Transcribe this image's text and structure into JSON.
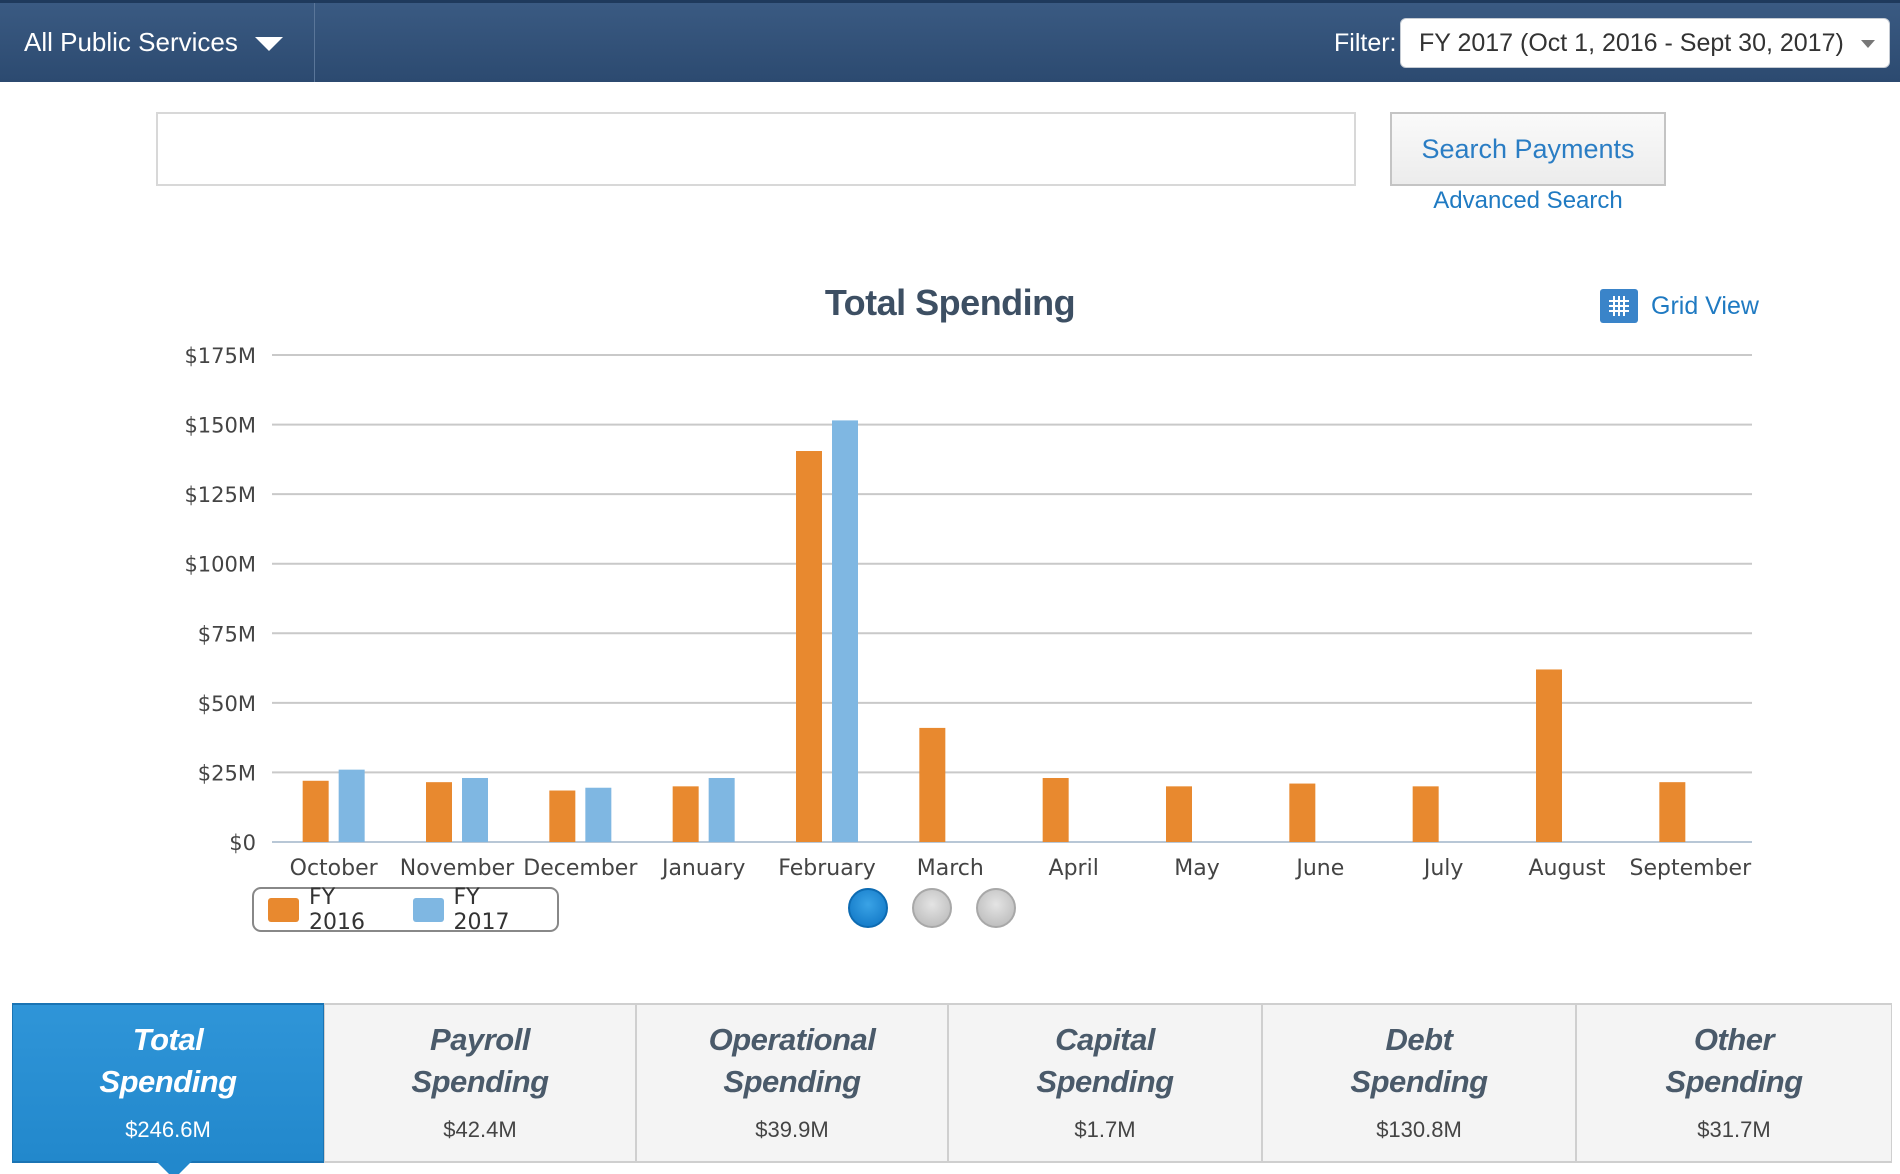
{
  "header": {
    "agency_label": "All Public Services",
    "filter_label": "Filter:",
    "filter_value": "FY 2017 (Oct 1, 2016 - Sept 30, 2017)"
  },
  "search": {
    "value": "",
    "placeholder": "",
    "button_label": "Search Payments",
    "advanced_label": "Advanced Search"
  },
  "chart_header": {
    "title": "Total Spending",
    "grid_view_label": "Grid View"
  },
  "legend": [
    {
      "label": "FY 2016",
      "color": "#e8892f"
    },
    {
      "label": "FY 2017",
      "color": "#7fb7e2"
    }
  ],
  "chart_data": {
    "type": "bar",
    "title": "Total Spending",
    "categories": [
      "October",
      "November",
      "December",
      "January",
      "February",
      "March",
      "April",
      "May",
      "June",
      "July",
      "August",
      "September"
    ],
    "series": [
      {
        "name": "FY 2016",
        "color": "#e8892f",
        "values": [
          22,
          21.5,
          18.5,
          20,
          140.5,
          41,
          23,
          20,
          21,
          20,
          62,
          21.5
        ]
      },
      {
        "name": "FY 2017",
        "color": "#7fb7e2",
        "values": [
          26,
          23,
          19.5,
          23,
          151.5,
          null,
          null,
          null,
          null,
          null,
          null,
          null
        ]
      }
    ],
    "y_ticks": [
      "$0",
      "$25M",
      "$50M",
      "$75M",
      "$100M",
      "$125M",
      "$150M",
      "$175M"
    ],
    "ylim": [
      0,
      175
    ],
    "xlabel": "",
    "ylabel": "",
    "grid": true,
    "legend_position": "bottom-left"
  },
  "pager": {
    "pages": 3,
    "active": 0
  },
  "tabs": [
    {
      "title": "Total\nSpending",
      "amount": "$246.6M",
      "active": true
    },
    {
      "title": "Payroll\nSpending",
      "amount": "$42.4M",
      "active": false
    },
    {
      "title": "Operational\nSpending",
      "amount": "$39.9M",
      "active": false
    },
    {
      "title": "Capital\nSpending",
      "amount": "$1.7M",
      "active": false
    },
    {
      "title": "Debt\nSpending",
      "amount": "$130.8M",
      "active": false
    },
    {
      "title": "Other\nSpending",
      "amount": "$31.7M",
      "active": false
    }
  ]
}
